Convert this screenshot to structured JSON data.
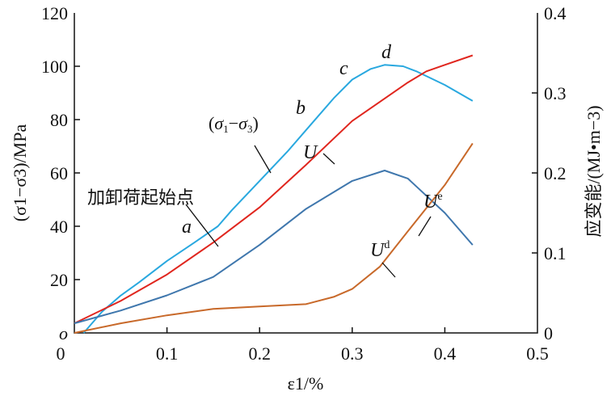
{
  "chart_data": {
    "type": "line",
    "xlabel": "ε1/%",
    "ylabel_left": "(σ1−σ3)/MPa",
    "ylabel_right": "应变能/(MJ•m−3)",
    "xlim": [
      0,
      0.5
    ],
    "ylim_left": [
      0,
      120
    ],
    "ylim_right": [
      0,
      0.4
    ],
    "x_ticks": [
      "0",
      "0.1",
      "0.2",
      "0.3",
      "0.4",
      "0.5"
    ],
    "y_ticks_left": [
      "o",
      "20",
      "40",
      "60",
      "80",
      "100",
      "120"
    ],
    "y_ticks_right": [
      "0",
      "0.1",
      "0.2",
      "0.3",
      "0.4"
    ],
    "grid": false,
    "series": [
      {
        "name": "(σ1−σ3)",
        "axis": "left",
        "color": "#29a8df",
        "x": [
          0.01,
          0.03,
          0.05,
          0.07,
          0.1,
          0.13,
          0.155,
          0.17,
          0.2,
          0.23,
          0.25,
          0.28,
          0.3,
          0.32,
          0.335,
          0.355,
          0.37,
          0.4,
          0.43
        ],
        "y": [
          0,
          8,
          14,
          19,
          27,
          34,
          40,
          46,
          57,
          68,
          76,
          88,
          95,
          99,
          100.5,
          100,
          98,
          93,
          87
        ]
      },
      {
        "name": "U",
        "axis": "right",
        "color": "#e0261e",
        "x": [
          0,
          0.05,
          0.1,
          0.15,
          0.2,
          0.25,
          0.3,
          0.36,
          0.38,
          0.4,
          0.43
        ],
        "y": [
          0.012,
          0.04,
          0.073,
          0.113,
          0.157,
          0.21,
          0.265,
          0.313,
          0.327,
          0.335,
          0.347
        ]
      },
      {
        "name": "Ue",
        "axis": "right",
        "color": "#3f77ad",
        "x": [
          0,
          0.05,
          0.1,
          0.15,
          0.2,
          0.25,
          0.3,
          0.335,
          0.36,
          0.4,
          0.43
        ],
        "y": [
          0.012,
          0.028,
          0.047,
          0.07,
          0.11,
          0.155,
          0.19,
          0.203,
          0.193,
          0.15,
          0.11
        ]
      },
      {
        "name": "Ud",
        "axis": "right",
        "color": "#c8692a",
        "x": [
          0,
          0.05,
          0.1,
          0.15,
          0.2,
          0.25,
          0.28,
          0.3,
          0.33,
          0.36,
          0.4,
          0.43
        ],
        "y": [
          0,
          0.012,
          0.022,
          0.03,
          0.033,
          0.036,
          0.045,
          0.055,
          0.083,
          0.127,
          0.185,
          0.237
        ]
      }
    ],
    "annotations": [
      {
        "text": "a",
        "x": 0.135,
        "y": 33
      },
      {
        "text": "b",
        "x": 0.26,
        "y": 83
      },
      {
        "text": "c",
        "x": 0.31,
        "y": 100
      },
      {
        "text": "d",
        "x": 0.36,
        "y": 105
      },
      {
        "text": "加卸荷起始点",
        "x": 0.1,
        "y": 58
      },
      {
        "text": "(σ1−σ3)",
        "x": 0.2,
        "y": 78
      },
      {
        "text": "U",
        "x": 0.27,
        "y": 70
      },
      {
        "text": "Ue",
        "x": 0.4,
        "y": 63
      },
      {
        "text": "Ud",
        "x": 0.355,
        "y": 28
      }
    ]
  }
}
